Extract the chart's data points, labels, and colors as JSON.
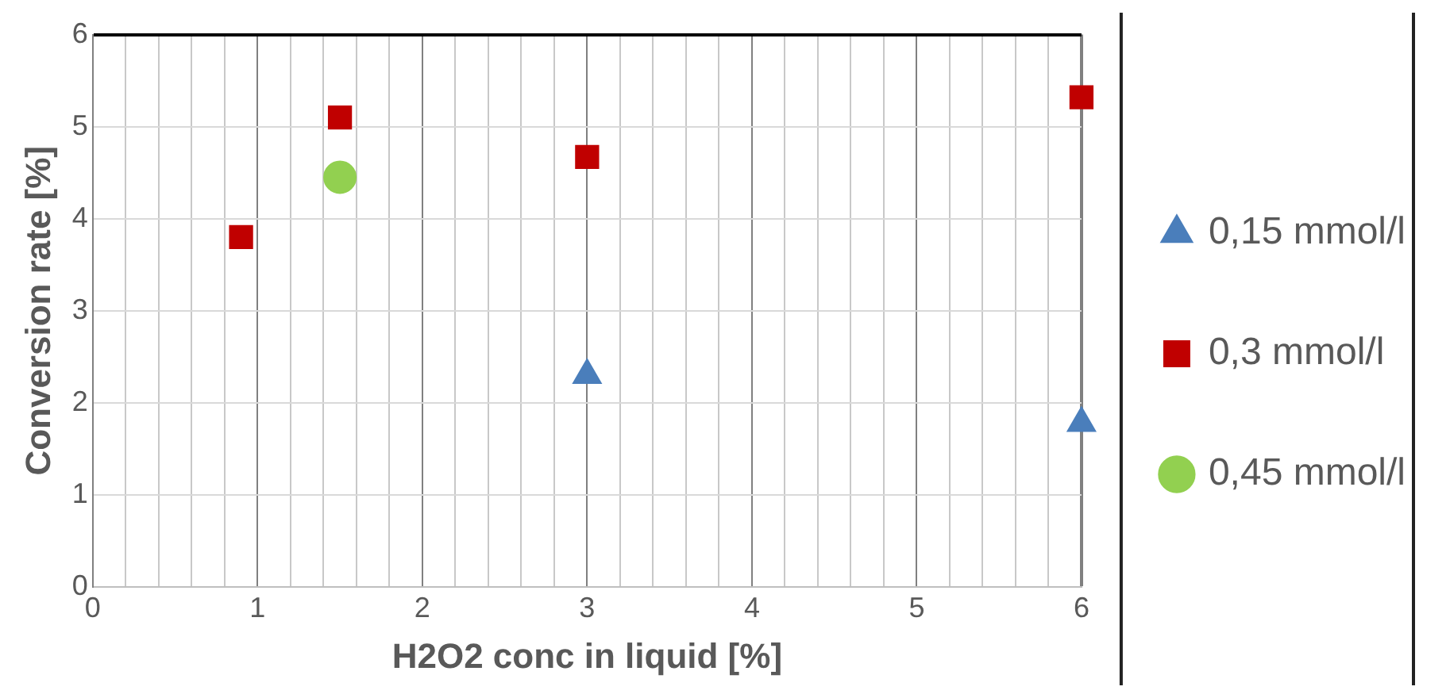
{
  "chart_data": {
    "type": "scatter",
    "xlabel": "H2O2 conc in liquid [%]",
    "ylabel": "Conversion rate [%]",
    "xlim": [
      0,
      6
    ],
    "ylim": [
      0,
      6
    ],
    "xticks": [
      0,
      {
        "value": 0.2,
        "label": null
      },
      {
        "value": 0.4,
        "label": null
      },
      {
        "value": 0.6,
        "label": null
      },
      {
        "value": 0.8,
        "label": null
      },
      1,
      {
        "value": 1.2,
        "label": null
      },
      {
        "value": 1.4,
        "label": null
      },
      {
        "value": 1.6,
        "label": null
      },
      {
        "value": 1.8,
        "label": null
      },
      2,
      {
        "value": 2.2,
        "label": null
      },
      {
        "value": 2.4,
        "label": null
      },
      {
        "value": 2.6,
        "label": null
      },
      {
        "value": 2.8,
        "label": null
      },
      3,
      {
        "value": 3.2,
        "label": null
      },
      {
        "value": 3.4,
        "label": null
      },
      {
        "value": 3.6,
        "label": null
      },
      {
        "value": 3.8,
        "label": null
      },
      4,
      {
        "value": 4.2,
        "label": null
      },
      {
        "value": 4.4,
        "label": null
      },
      {
        "value": 4.6,
        "label": null
      },
      {
        "value": 4.8,
        "label": null
      },
      5,
      {
        "value": 5.2,
        "label": null
      },
      {
        "value": 5.4,
        "label": null
      },
      {
        "value": 5.6,
        "label": null
      },
      {
        "value": 5.8,
        "label": null
      },
      6
    ],
    "yticks": [
      0,
      1,
      2,
      3,
      4,
      5,
      6
    ],
    "grid": true,
    "legend": "right",
    "series": [
      {
        "name": "0,15 mmol/l",
        "color": "#4a7ebb",
        "marker": "triangle",
        "x": [
          3,
          6
        ],
        "values": [
          2.3,
          1.78
        ]
      },
      {
        "name": "0,3 mmol/l",
        "color": "#c00000",
        "marker": "square",
        "x": [
          0.9,
          1.5,
          3,
          6
        ],
        "values": [
          3.8,
          5.1,
          4.67,
          5.32
        ]
      },
      {
        "name": "0,45 mmol/l",
        "color": "#92d050",
        "marker": "circle",
        "x": [
          1.5
        ],
        "values": [
          4.45
        ]
      }
    ]
  }
}
